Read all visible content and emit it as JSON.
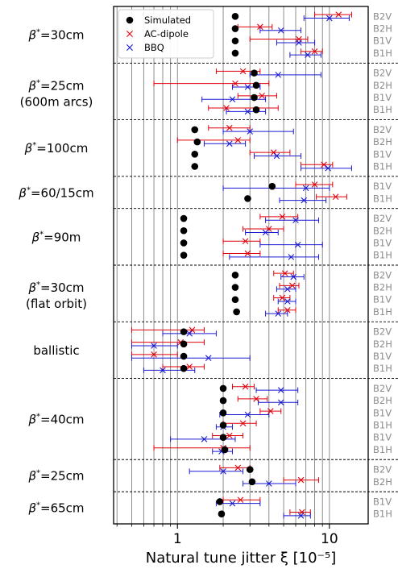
{
  "chart_data": {
    "type": "scatter",
    "xlabel": "Natural tune jitter ξ [10⁻⁵]",
    "xscale": "log",
    "xlim": [
      0.38,
      18
    ],
    "xticks": [
      {
        "value": 1,
        "label": "1"
      },
      {
        "value": 10,
        "label": "10"
      }
    ],
    "grid": "vertical",
    "legend": {
      "position": "top-left",
      "entries": [
        {
          "series": "sim",
          "label": "Simulated"
        },
        {
          "series": "ac",
          "label": "AC-dipole"
        },
        {
          "series": "bbq",
          "label": "BBQ"
        }
      ]
    },
    "colors": {
      "sim": "#000000",
      "ac": "#e0000a",
      "bbq": "#1a1ad4",
      "grid": "#808080",
      "rowLabel": "#8c8c8c"
    },
    "groups": [
      {
        "label": "β*=30cm",
        "rows": [
          {
            "label": "B2V",
            "sim": 2.4,
            "ac": [
              11.5,
              8.0,
              14.0
            ],
            "bbq": [
              10.0,
              6.8,
              13.5
            ]
          },
          {
            "label": "B2H",
            "sim": 2.4,
            "ac": [
              3.5,
              2.5,
              4.2
            ],
            "bbq": [
              4.8,
              3.5,
              6.5
            ]
          },
          {
            "label": "B1V",
            "sim": 2.4,
            "ac": [
              6.3,
              3.0,
              7.2
            ],
            "bbq": [
              6.3,
              4.5,
              8.0
            ]
          },
          {
            "label": "B1H",
            "sim": 2.4,
            "ac": [
              8.0,
              6.5,
              9.0
            ],
            "bbq": [
              7.2,
              5.5,
              8.8
            ]
          }
        ]
      },
      {
        "label": "β*=25cm",
        "sublabel": "(600m arcs)",
        "rows": [
          {
            "label": "B2V",
            "sim": 3.2,
            "ac": [
              2.7,
              1.8,
              3.5
            ],
            "bbq": [
              4.6,
              3.0,
              8.8
            ]
          },
          {
            "label": "B2H",
            "sim": 3.3,
            "ac": [
              2.4,
              0.7,
              4.0
            ],
            "bbq": [
              2.9,
              2.3,
              3.5
            ]
          },
          {
            "label": "B1V",
            "sim": 3.2,
            "ac": [
              3.6,
              2.5,
              4.5
            ],
            "bbq": [
              2.3,
              1.45,
              3.8
            ]
          },
          {
            "label": "B1H",
            "sim": 3.3,
            "ac": [
              2.1,
              1.6,
              4.6
            ],
            "bbq": [
              2.9,
              2.1,
              3.8
            ]
          }
        ]
      },
      {
        "label": "β*=100cm",
        "rows": [
          {
            "label": "B2V",
            "sim": 1.3,
            "ac": [
              2.2,
              1.6,
              3.0
            ],
            "bbq": [
              3.0,
              2.0,
              5.8
            ]
          },
          {
            "label": "B2H",
            "sim": 1.35,
            "ac": [
              2.5,
              1.0,
              3.0
            ],
            "bbq": [
              2.2,
              1.5,
              2.8
            ]
          },
          {
            "label": "B1V",
            "sim": 1.3,
            "ac": [
              4.3,
              3.0,
              5.5
            ],
            "bbq": [
              4.5,
              3.2,
              6.5
            ]
          },
          {
            "label": "B1H",
            "sim": 1.3,
            "ac": [
              9.2,
              6.5,
              10.5
            ],
            "bbq": [
              9.8,
              6.5,
              14.0
            ]
          }
        ]
      },
      {
        "label": "β*=60/15cm",
        "rows": [
          {
            "label": "B1V",
            "sim": 4.2,
            "ac": [
              8.0,
              6.0,
              10.5
            ],
            "bbq": [
              7.0,
              2.0,
              10.0
            ]
          },
          {
            "label": "B1H",
            "sim": 2.9,
            "ac": [
              11.0,
              8.2,
              13.0
            ],
            "bbq": [
              6.8,
              4.7,
              9.5
            ]
          }
        ]
      },
      {
        "label": "β*=90m",
        "rows": [
          {
            "label": "B2V",
            "sim": 1.1,
            "ac": [
              4.9,
              3.5,
              6.2
            ],
            "bbq": [
              6.0,
              3.8,
              8.5
            ]
          },
          {
            "label": "B2H",
            "sim": 1.1,
            "ac": [
              4.0,
              2.7,
              5.0
            ],
            "bbq": [
              3.8,
              2.8,
              4.6
            ]
          },
          {
            "label": "B1V",
            "sim": 1.1,
            "ac": [
              2.8,
              2.0,
              3.5
            ],
            "bbq": [
              6.2,
              3.5,
              9.0
            ]
          },
          {
            "label": "B1H",
            "sim": 1.1,
            "ac": [
              2.9,
              2.0,
              3.5
            ],
            "bbq": [
              5.6,
              2.2,
              8.5
            ]
          }
        ]
      },
      {
        "label": "β*=30cm",
        "sublabel": "(flat orbit)",
        "rows": [
          {
            "label": "B2V",
            "sim": 2.4,
            "ac": [
              5.1,
              4.3,
              5.8
            ],
            "bbq": [
              5.8,
              4.8,
              6.8
            ]
          },
          {
            "label": "B2H",
            "sim": 2.4,
            "ac": [
              5.7,
              4.7,
              6.3
            ],
            "bbq": [
              5.3,
              4.5,
              6.0
            ]
          },
          {
            "label": "B1V",
            "sim": 2.4,
            "ac": [
              4.9,
              4.3,
              5.5
            ],
            "bbq": [
              5.3,
              4.6,
              6.0
            ]
          },
          {
            "label": "B1H",
            "sim": 2.45,
            "ac": [
              5.3,
              4.6,
              6.0
            ],
            "bbq": [
              4.6,
              3.8,
              5.3
            ]
          }
        ]
      },
      {
        "label": "ballistic",
        "rows": [
          {
            "label": "B2V",
            "sim": 1.1,
            "ac": [
              1.25,
              0.5,
              1.5
            ],
            "bbq": [
              1.2,
              0.8,
              1.8
            ]
          },
          {
            "label": "B2H",
            "sim": 1.1,
            "ac": [
              1.05,
              0.5,
              1.5
            ],
            "bbq": [
              0.7,
              0.5,
              1.0
            ]
          },
          {
            "label": "B1V",
            "sim": 1.1,
            "ac": [
              0.7,
              0.5,
              1.0
            ],
            "bbq": [
              1.6,
              0.5,
              3.0
            ]
          },
          {
            "label": "B1H",
            "sim": 1.1,
            "ac": [
              1.2,
              0.8,
              1.5
            ],
            "bbq": [
              0.8,
              0.6,
              1.3
            ]
          }
        ]
      },
      {
        "label": "β*=40cm",
        "rows": [
          {
            "label": "B2V",
            "sim": 2.0,
            "ac": [
              2.8,
              2.3,
              3.2
            ],
            "bbq": [
              4.8,
              3.3,
              6.2
            ]
          },
          {
            "label": "B2H",
            "sim": 2.0,
            "ac": [
              3.3,
              2.5,
              3.9
            ],
            "bbq": [
              4.8,
              3.4,
              6.2
            ]
          },
          {
            "label": "B1V",
            "sim": 2.0,
            "ac": [
              4.1,
              3.5,
              4.8
            ],
            "bbq": [
              2.9,
              1.9,
              4.0
            ]
          },
          {
            "label": "B1H",
            "sim": 2.0,
            "ac": [
              2.7,
              2.0,
              3.3
            ],
            "bbq": [
              2.0,
              1.8,
              2.3
            ]
          },
          {
            "label": "B1V",
            "sim": 2.0,
            "ac": [
              2.2,
              1.7,
              2.7
            ],
            "bbq": [
              1.5,
              0.9,
              2.4
            ]
          },
          {
            "label": "B1H",
            "sim": 2.05,
            "ac": [
              2.0,
              0.7,
              3.0
            ],
            "bbq": [
              1.95,
              1.7,
              2.3
            ]
          }
        ]
      },
      {
        "label": "β*=25cm",
        "rows": [
          {
            "label": "B2V",
            "sim": 3.0,
            "ac": [
              2.5,
              1.9,
              3.0
            ],
            "bbq": [
              2.0,
              1.2,
              2.7
            ]
          },
          {
            "label": "B2H",
            "sim": 3.1,
            "ac": [
              6.5,
              5.0,
              8.5
            ],
            "bbq": [
              4.0,
              2.7,
              6.0
            ]
          }
        ]
      },
      {
        "label": "β*=65cm",
        "rows": [
          {
            "label": "B1V",
            "sim": 1.9,
            "ac": [
              2.6,
              2.0,
              3.5
            ],
            "bbq": [
              2.3,
              1.8,
              3.5
            ]
          },
          {
            "label": "B1H",
            "sim": 1.95,
            "ac": [
              6.6,
              5.5,
              7.5
            ],
            "bbq": [
              6.5,
              5.0,
              7.5
            ]
          }
        ]
      }
    ]
  }
}
